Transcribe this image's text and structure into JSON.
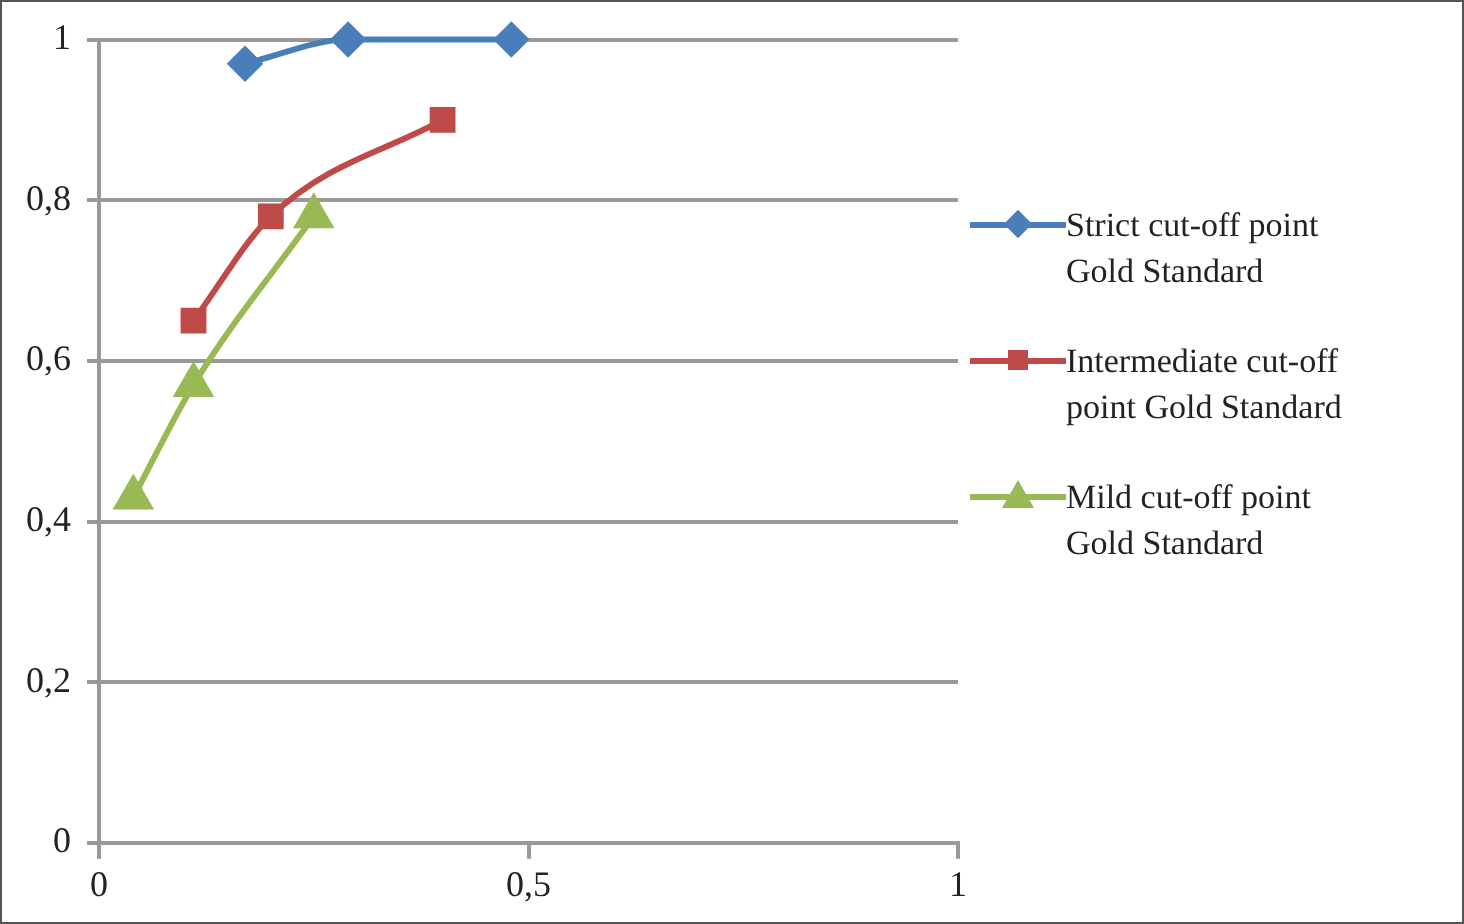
{
  "chart_data": {
    "type": "line",
    "xlim": [
      0,
      1
    ],
    "xticks": [
      0,
      {
        "value": 0.5,
        "label": "0,5"
      },
      1
    ],
    "ylim": [
      0,
      1
    ],
    "yticks": [
      0,
      {
        "value": 0.2,
        "label": "0,2"
      },
      {
        "value": 0.4,
        "label": "0,4"
      },
      {
        "value": 0.6,
        "label": "0,6"
      },
      {
        "value": 0.8,
        "label": "0,8"
      },
      1
    ],
    "grid": "y",
    "legend": "right",
    "line_style": "solid",
    "series": [
      {
        "name": "Strict cut-off point Gold Standard",
        "color": "#4a7ebb",
        "marker": "diamond",
        "x": [
          0.17,
          0.29,
          0.48
        ],
        "values": [
          0.97,
          1,
          1
        ]
      },
      {
        "name": "Intermediate cut-off point Gold Standard",
        "color": "#be4b48",
        "marker": "square",
        "x": [
          0.11,
          0.2,
          0.4
        ],
        "values": [
          0.65,
          0.78,
          0.9
        ]
      },
      {
        "name": "Mild cut-off point Gold Standard",
        "color": "#98b954",
        "marker": "triangle",
        "x": [
          0.04,
          0.11,
          0.25
        ],
        "values": [
          0.43,
          0.57,
          0.78
        ]
      }
    ]
  }
}
